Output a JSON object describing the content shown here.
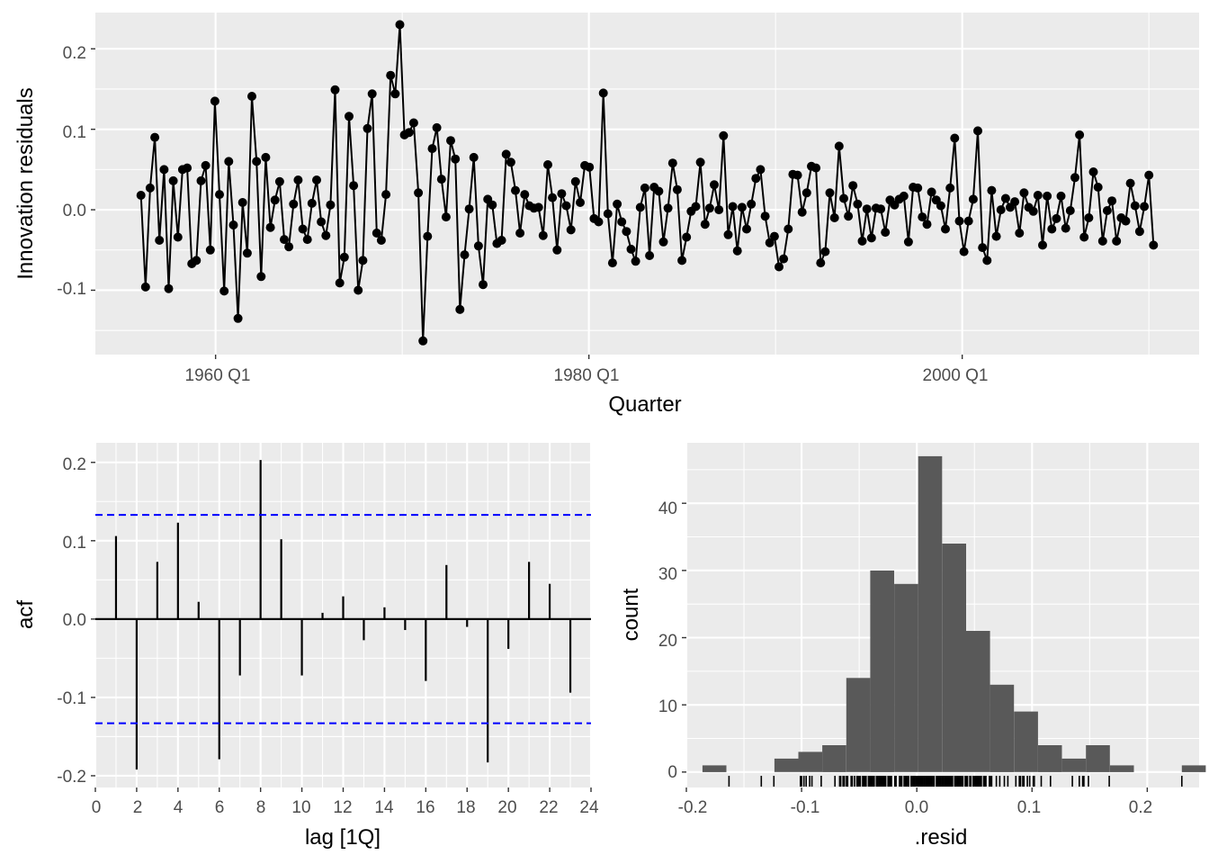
{
  "colors": {
    "panel": "#ebebeb",
    "grid": "#ffffff",
    "ink": "#000000",
    "hist": "#595959",
    "ci": "#0000ff"
  },
  "chart_data": [
    {
      "type": "line",
      "xlabel": "Quarter",
      "ylabel": "Innovation residuals",
      "x_ticks": [
        "1960 Q1",
        "1980 Q1",
        "2000 Q1"
      ],
      "y_ticks": [
        "-0.1",
        "0.0",
        "0.1",
        "0.2"
      ],
      "x_start": "1956 Q1",
      "x_end": "2010 Q2",
      "ylim": [
        -0.18,
        0.245
      ],
      "grid": true,
      "markers": true,
      "values": [
        0.018,
        -0.096,
        0.027,
        0.09,
        -0.038,
        0.05,
        -0.098,
        0.036,
        -0.034,
        0.05,
        0.052,
        -0.067,
        -0.063,
        0.036,
        0.055,
        -0.05,
        0.135,
        0.019,
        -0.101,
        0.06,
        -0.019,
        -0.135,
        0.009,
        -0.054,
        0.141,
        0.06,
        -0.083,
        0.065,
        -0.022,
        0.012,
        0.035,
        -0.037,
        -0.046,
        0.007,
        0.037,
        -0.024,
        -0.037,
        0.008,
        0.037,
        -0.015,
        -0.032,
        0.006,
        0.149,
        -0.091,
        -0.059,
        0.116,
        0.03,
        -0.1,
        -0.063,
        0.101,
        0.144,
        -0.029,
        -0.038,
        0.019,
        0.167,
        0.144,
        0.23,
        0.093,
        0.096,
        0.108,
        0.021,
        -0.163,
        -0.033,
        0.076,
        0.102,
        0.038,
        -0.009,
        0.086,
        0.063,
        -0.124,
        -0.056,
        0.001,
        0.065,
        -0.045,
        -0.093,
        0.013,
        0.006,
        -0.042,
        -0.038,
        0.069,
        0.059,
        0.024,
        -0.029,
        0.019,
        0.005,
        0.002,
        0.003,
        -0.032,
        0.056,
        0.015,
        -0.05,
        0.02,
        0.005,
        -0.025,
        0.035,
        0.009,
        0.055,
        0.053,
        -0.011,
        -0.015,
        0.145,
        -0.005,
        -0.066,
        0.007,
        -0.015,
        -0.027,
        -0.049,
        -0.064,
        0.003,
        0.027,
        -0.057,
        0.028,
        0.023,
        -0.04,
        0.002,
        0.058,
        0.025,
        -0.063,
        -0.034,
        -0.002,
        0.004,
        0.059,
        -0.018,
        0.002,
        0.031,
        0.0,
        0.092,
        -0.031,
        0.004,
        -0.051,
        0.003,
        -0.024,
        0.007,
        0.039,
        0.05,
        -0.008,
        -0.041,
        -0.033,
        -0.071,
        -0.061,
        -0.024,
        0.044,
        0.043,
        -0.003,
        0.021,
        0.054,
        0.052,
        -0.066,
        -0.052,
        0.021,
        -0.01,
        0.079,
        0.014,
        -0.008,
        0.03,
        0.007,
        -0.039,
        0.001,
        -0.035,
        0.002,
        0.001,
        -0.028,
        0.012,
        0.006,
        0.013,
        0.017,
        -0.04,
        0.028,
        0.027,
        -0.009,
        -0.018,
        0.022,
        0.012,
        0.005,
        -0.024,
        0.027,
        0.089,
        -0.014,
        -0.052,
        -0.014,
        0.013,
        0.098,
        -0.047,
        -0.063,
        0.024,
        -0.033,
        0.0,
        0.014,
        0.003,
        0.01,
        -0.029,
        0.021,
        0.003,
        -0.002,
        0.018,
        -0.044,
        0.017,
        -0.024,
        -0.011,
        0.017,
        -0.023,
        -0.001,
        0.04,
        0.093,
        -0.034,
        -0.01,
        0.047,
        0.028,
        -0.039,
        -0.001,
        0.011,
        -0.039,
        -0.01,
        -0.014,
        0.033,
        0.005,
        -0.027,
        0.004,
        0.043,
        -0.044
      ]
    },
    {
      "type": "bar",
      "xlabel": "lag [1Q]",
      "ylabel": "acf",
      "lags": [
        1,
        2,
        3,
        4,
        5,
        6,
        7,
        8,
        9,
        10,
        11,
        12,
        13,
        14,
        15,
        16,
        17,
        18,
        19,
        20,
        21,
        22,
        23
      ],
      "values": [
        0.106,
        -0.192,
        0.073,
        0.123,
        0.022,
        -0.179,
        -0.072,
        0.203,
        0.102,
        -0.072,
        0.008,
        0.029,
        -0.027,
        0.015,
        -0.014,
        -0.079,
        0.069,
        -0.01,
        -0.183,
        -0.038,
        0.073,
        0.045,
        -0.094
      ],
      "ci": 0.133,
      "x_ticks": [
        "0",
        "2",
        "4",
        "6",
        "8",
        "10",
        "12",
        "14",
        "16",
        "18",
        "20",
        "22",
        "24"
      ],
      "y_ticks": [
        "-0.2",
        "-0.1",
        "0.0",
        "0.1",
        "0.2"
      ],
      "xlim": [
        0,
        24
      ],
      "ylim": [
        -0.215,
        0.225
      ],
      "grid": true
    },
    {
      "type": "histogram",
      "xlabel": ".resid",
      "ylabel": "count",
      "bin_start": -0.186,
      "bin_width": 0.0208,
      "counts": [
        1,
        0,
        0,
        2,
        3,
        4,
        14,
        30,
        28,
        47,
        34,
        21,
        13,
        9,
        4,
        2,
        4,
        1,
        0,
        0,
        1
      ],
      "rug": [
        -0.163,
        -0.135,
        -0.124,
        -0.101,
        -0.1,
        -0.098,
        -0.096,
        -0.093,
        -0.091,
        -0.083,
        -0.071,
        -0.067,
        -0.066,
        -0.064,
        -0.063,
        -0.063,
        -0.061,
        -0.06,
        -0.057,
        -0.056,
        -0.054,
        -0.052,
        -0.051,
        -0.05,
        -0.049,
        -0.047,
        -0.046,
        -0.045,
        -0.044,
        -0.042,
        -0.041,
        -0.04,
        -0.039,
        -0.038,
        -0.037,
        -0.035,
        -0.034,
        -0.033,
        -0.032,
        -0.031,
        -0.03,
        -0.029,
        -0.028,
        -0.027,
        -0.025,
        -0.024,
        -0.023,
        -0.022,
        -0.019,
        -0.018,
        -0.015,
        -0.014,
        -0.013,
        -0.011,
        -0.01,
        -0.009,
        -0.008,
        -0.007,
        -0.005,
        -0.004,
        -0.003,
        -0.002,
        -0.001,
        0.0,
        0.001,
        0.002,
        0.003,
        0.004,
        0.005,
        0.006,
        0.007,
        0.008,
        0.009,
        0.01,
        0.011,
        0.012,
        0.013,
        0.014,
        0.015,
        0.017,
        0.018,
        0.019,
        0.02,
        0.021,
        0.022,
        0.023,
        0.024,
        0.025,
        0.026,
        0.027,
        0.028,
        0.029,
        0.03,
        0.031,
        0.033,
        0.034,
        0.035,
        0.036,
        0.037,
        0.038,
        0.039,
        0.04,
        0.042,
        0.043,
        0.044,
        0.046,
        0.047,
        0.049,
        0.05,
        0.051,
        0.052,
        0.053,
        0.054,
        0.055,
        0.056,
        0.058,
        0.059,
        0.06,
        0.063,
        0.064,
        0.065,
        0.069,
        0.072,
        0.076,
        0.079,
        0.086,
        0.089,
        0.09,
        0.092,
        0.093,
        0.096,
        0.098,
        0.101,
        0.102,
        0.108,
        0.116,
        0.135,
        0.141,
        0.144,
        0.145,
        0.149,
        0.167,
        0.23
      ],
      "x_ticks": [
        "-0.2",
        "-0.1",
        "0.0",
        "0.1",
        "0.2"
      ],
      "y_ticks": [
        "0",
        "10",
        "20",
        "30",
        "40"
      ],
      "xlim": [
        -0.2,
        0.245
      ],
      "ylim": [
        -2.3,
        49
      ],
      "grid": true
    }
  ]
}
